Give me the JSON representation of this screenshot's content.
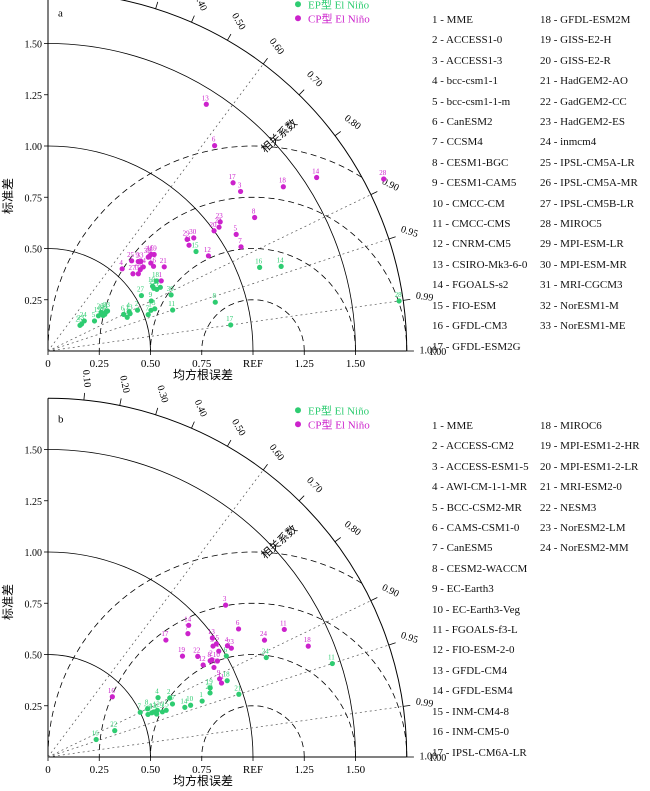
{
  "colors": {
    "ep": "#2ecc71",
    "cp": "#cc22cc",
    "axis": "#000000",
    "guide": "#555555"
  },
  "common": {
    "series_names": [
      "EP型 El Niño",
      "CP型 El Niño"
    ],
    "ylabel": "标准差",
    "xlabel": "均方根误差",
    "corr_label": "相关系数",
    "ref_label": "REF",
    "std_ticks": [
      "0.25",
      "0.50",
      "0.75",
      "1.00",
      "1.25",
      "1.50"
    ],
    "corr_ticks": [
      "0.10",
      "0.20",
      "0.30",
      "0.40",
      "0.50",
      "0.60",
      "0.70",
      "0.80",
      "0.90",
      "0.95",
      "0.99",
      "1.00"
    ],
    "x_ticks": [
      "0",
      "0.25",
      "0.50",
      "0.75",
      "REF",
      "1.25",
      "1.50"
    ]
  },
  "chart_data": [
    {
      "type": "scatter",
      "panel_label": "a",
      "diagram": "taylor",
      "x_quantity": "correlation coefficient",
      "y_quantity": "normalized standard deviation",
      "std_range": [
        0,
        1.75
      ],
      "reference": {
        "std": 1.0,
        "corr": 1.0
      },
      "legend_placement": "top-right",
      "models": [
        "MME",
        "ACCESS1-0",
        "ACCESS1-3",
        "bcc-csm1-1",
        "bcc-csm1-1-m",
        "CanESM2",
        "CCSM4",
        "CESM1-BGC",
        "CESM1-CAM5",
        "CMCC-CM",
        "CMCC-CMS",
        "CNRM-CM5",
        "CSIRO-Mk3-6-0",
        "FGOALS-s2",
        "FIO-ESM",
        "GFDL-CM3",
        "GFDL-ESM2G",
        "GFDL-ESM2M",
        "GISS-E2-H",
        "GISS-E2-R",
        "HadGEM2-AO",
        "GadGEM2-CC",
        "HadGEM2-ES",
        "inmcm4",
        "IPSL-CM5A-LR",
        "IPSL-CM5A-MR",
        "IPSL-CM5B-LR",
        "MIROC5",
        "MPI-ESM-LR",
        "MPI-ESM-MR",
        "MRI-CGCM3",
        "NorESM1-M",
        "NorESM1-ME"
      ],
      "series": [
        {
          "name": "EP型 El Niño",
          "points": [
            {
              "id": 1,
              "corr": 0.93,
              "std": 0.54
            },
            {
              "id": 2,
              "corr": 0.91,
              "std": 0.48
            },
            {
              "id": 3,
              "corr": 0.93,
              "std": 0.56
            },
            {
              "id": 4,
              "corr": 0.9,
              "std": 0.44
            },
            {
              "id": 5,
              "corr": 0.84,
              "std": 0.27
            },
            {
              "id": 6,
              "corr": 0.9,
              "std": 0.41
            },
            {
              "id": 7,
              "corr": 0.94,
              "std": 0.52
            },
            {
              "id": 8,
              "corr": 0.96,
              "std": 0.85
            },
            {
              "id": 9,
              "corr": 0.9,
              "std": 0.56
            },
            {
              "id": 10,
              "corr": 0.85,
              "std": 0.6
            },
            {
              "id": 11,
              "corr": 0.95,
              "std": 0.64
            },
            {
              "id": 12,
              "corr": 0.92,
              "std": 0.42
            },
            {
              "id": 13,
              "corr": 0.91,
              "std": 0.44
            },
            {
              "id": 14,
              "corr": 0.94,
              "std": 1.21
            },
            {
              "id": 15,
              "corr": 0.83,
              "std": 0.87
            },
            {
              "id": 16,
              "corr": 0.93,
              "std": 1.11
            },
            {
              "id": 17,
              "corr": 0.99,
              "std": 0.9
            },
            {
              "id": 18,
              "corr": 0.84,
              "std": 0.63
            },
            {
              "id": 19,
              "corr": 0.82,
              "std": 0.3
            },
            {
              "id": 20,
              "corr": 0.81,
              "std": 0.32
            },
            {
              "id": 21,
              "corr": 0.87,
              "std": 0.61
            },
            {
              "id": 22,
              "corr": 0.86,
              "std": 0.6
            },
            {
              "id": 23,
              "corr": 0.78,
              "std": 0.21
            },
            {
              "id": 24,
              "corr": 0.77,
              "std": 0.23
            },
            {
              "id": 25,
              "corr": 0.78,
              "std": 0.2
            },
            {
              "id": 26,
              "corr": 0.84,
              "std": 0.32
            },
            {
              "id": 27,
              "corr": 0.86,
              "std": 0.53
            },
            {
              "id": 28,
              "corr": 0.99,
              "std": 1.73
            },
            {
              "id": 29,
              "corr": 0.87,
              "std": 0.63
            },
            {
              "id": 30,
              "corr": 0.91,
              "std": 0.66
            },
            {
              "id": 31,
              "corr": 0.83,
              "std": 0.34
            },
            {
              "id": 32,
              "corr": 0.84,
              "std": 0.33
            },
            {
              "id": 33,
              "corr": 0.83,
              "std": 0.35
            }
          ]
        },
        {
          "name": "CP型 El Niño",
          "points": [
            {
              "id": 1,
              "corr": 0.85,
              "std": 0.65
            },
            {
              "id": 2,
              "corr": 0.76,
              "std": 0.66
            },
            {
              "id": 3,
              "corr": 0.77,
              "std": 1.22
            },
            {
              "id": 4,
              "corr": 0.67,
              "std": 0.54
            },
            {
              "id": 5,
              "corr": 0.85,
              "std": 1.08
            },
            {
              "id": 6,
              "corr": 0.63,
              "std": 1.29
            },
            {
              "id": 7,
              "corr": 0.88,
              "std": 1.07
            },
            {
              "id": 8,
              "corr": 0.84,
              "std": 1.2
            },
            {
              "id": 9,
              "corr": 0.71,
              "std": 0.62
            },
            {
              "id": 10,
              "corr": 0.76,
              "std": 0.58
            },
            {
              "id": 11,
              "corr": 0.8,
              "std": 0.86
            },
            {
              "id": 12,
              "corr": 0.86,
              "std": 0.91
            },
            {
              "id": 13,
              "corr": 0.54,
              "std": 1.43
            },
            {
              "id": 14,
              "corr": 0.84,
              "std": 1.56
            },
            {
              "id": 15,
              "corr": 0.73,
              "std": 0.69
            },
            {
              "id": 16,
              "corr": 0.78,
              "std": 0.66
            },
            {
              "id": 17,
              "corr": 0.74,
              "std": 1.22
            },
            {
              "id": 18,
              "corr": 0.82,
              "std": 1.4
            },
            {
              "id": 19,
              "corr": 0.74,
              "std": 0.7
            },
            {
              "id": 20,
              "corr": 0.81,
              "std": 1.0
            },
            {
              "id": 21,
              "corr": 0.81,
              "std": 0.7
            },
            {
              "id": 22,
              "corr": 0.81,
              "std": 1.03
            },
            {
              "id": 23,
              "corr": 0.8,
              "std": 1.05
            },
            {
              "id": 24,
              "corr": 0.75,
              "std": 0.62
            },
            {
              "id": 25,
              "corr": 0.68,
              "std": 0.6
            },
            {
              "id": 26,
              "corr": 0.75,
              "std": 0.6
            },
            {
              "id": 27,
              "corr": 0.74,
              "std": 0.56
            },
            {
              "id": 28,
              "corr": 0.89,
              "std": 1.84
            },
            {
              "id": 29,
              "corr": 0.78,
              "std": 0.87
            },
            {
              "id": 30,
              "corr": 0.79,
              "std": 0.9
            },
            {
              "id": 31,
              "corr": 0.73,
              "std": 0.68
            },
            {
              "id": 32,
              "corr": 0.73,
              "std": 0.67
            },
            {
              "id": 33,
              "corr": 0.72,
              "std": 0.63
            }
          ]
        }
      ]
    },
    {
      "type": "scatter",
      "panel_label": "b",
      "diagram": "taylor",
      "x_quantity": "correlation coefficient",
      "y_quantity": "normalized standard deviation",
      "std_range": [
        0,
        1.75
      ],
      "reference": {
        "std": 1.0,
        "corr": 1.0
      },
      "legend_placement": "top-right",
      "models": [
        "MME",
        "ACCESS-CM2",
        "ACCESS-ESM1-5",
        "AWI-CM-1-1-MR",
        "BCC-CSM2-MR",
        "CAMS-CSM1-0",
        "CanESM5",
        "CESM2-WACCM",
        "EC-Earth3",
        "EC-Earth3-Veg",
        "FGOALS-f3-L",
        "FIO-ESM-2-0",
        "GFDL-CM4",
        "GFDL-ESM4",
        "INM-CM4-8",
        "INM-CM5-0",
        "IPSL-CM6A-LR",
        "MIROC6",
        "MPI-ESM1-2-HR",
        "MPI-ESM1-2-LR",
        "MRI-ESM2-0",
        "NESM3",
        "NorESM2-LM",
        "NorESM2-MM"
      ],
      "series": [
        {
          "name": "EP型 El Niño",
          "points": [
            {
              "id": 1,
              "corr": 0.94,
              "std": 0.8
            },
            {
              "id": 2,
              "corr": 0.9,
              "std": 0.66
            },
            {
              "id": 3,
              "corr": 0.92,
              "std": 0.55
            },
            {
              "id": 4,
              "corr": 0.88,
              "std": 0.61
            },
            {
              "id": 5,
              "corr": 0.93,
              "std": 0.57
            },
            {
              "id": 6,
              "corr": 0.87,
              "std": 1.0
            },
            {
              "id": 7,
              "corr": 0.9,
              "std": 0.5
            },
            {
              "id": 8,
              "corr": 0.9,
              "std": 0.54
            },
            {
              "id": 9,
              "corr": 0.93,
              "std": 0.6
            },
            {
              "id": 10,
              "corr": 0.94,
              "std": 0.74
            },
            {
              "id": 11,
              "corr": 0.95,
              "std": 1.46
            },
            {
              "id": 12,
              "corr": 0.92,
              "std": 0.58
            },
            {
              "id": 13,
              "corr": 0.92,
              "std": 0.56
            },
            {
              "id": 14,
              "corr": 0.94,
              "std": 0.71
            },
            {
              "id": 15,
              "corr": 0.93,
              "std": 0.62
            },
            {
              "id": 16,
              "corr": 0.94,
              "std": 0.25
            },
            {
              "id": 17,
              "corr": 0.92,
              "std": 0.66
            },
            {
              "id": 18,
              "corr": 0.92,
              "std": 0.95
            },
            {
              "id": 19,
              "corr": 0.92,
              "std": 0.86
            },
            {
              "id": 20,
              "corr": 0.93,
              "std": 0.85
            },
            {
              "id": 21,
              "corr": 0.95,
              "std": 0.98
            },
            {
              "id": 22,
              "corr": 0.93,
              "std": 0.35
            },
            {
              "id": 23,
              "corr": 0.92,
              "std": 0.53
            },
            {
              "id": 24,
              "corr": 0.91,
              "std": 1.17
            }
          ]
        },
        {
          "name": "CP型 El Niño",
          "points": [
            {
              "id": 1,
              "corr": 0.85,
              "std": 0.98
            },
            {
              "id": 2,
              "corr": 0.86,
              "std": 0.93
            },
            {
              "id": 3,
              "corr": 0.76,
              "std": 1.14
            },
            {
              "id": 4,
              "corr": 0.85,
              "std": 1.03
            },
            {
              "id": 5,
              "corr": 0.83,
              "std": 0.97
            },
            {
              "id": 6,
              "corr": 0.83,
              "std": 1.12
            },
            {
              "id": 7,
              "corr": 0.75,
              "std": 0.91
            },
            {
              "id": 8,
              "corr": 0.86,
              "std": 0.92
            },
            {
              "id": 9,
              "corr": 0.91,
              "std": 0.92
            },
            {
              "id": 10,
              "corr": 0.87,
              "std": 0.95
            },
            {
              "id": 11,
              "corr": 0.88,
              "std": 1.31
            },
            {
              "id": 12,
              "corr": 0.86,
              "std": 0.88
            },
            {
              "id": 13,
              "corr": 0.81,
              "std": 0.99
            },
            {
              "id": 14,
              "corr": 0.73,
              "std": 0.94
            },
            {
              "id": 15,
              "corr": 0.83,
              "std": 0.99
            },
            {
              "id": 16,
              "corr": 0.73,
              "std": 0.43
            },
            {
              "id": 17,
              "corr": 0.71,
              "std": 0.81
            },
            {
              "id": 18,
              "corr": 0.92,
              "std": 1.38
            },
            {
              "id": 19,
              "corr": 0.8,
              "std": 0.82
            },
            {
              "id": 20,
              "corr": 0.88,
              "std": 0.92
            },
            {
              "id": 21,
              "corr": 0.92,
              "std": 0.92
            },
            {
              "id": 22,
              "corr": 0.83,
              "std": 0.88
            },
            {
              "id": 23,
              "corr": 0.86,
              "std": 1.04
            },
            {
              "id": 24,
              "corr": 0.88,
              "std": 1.2
            }
          ]
        }
      ]
    }
  ]
}
